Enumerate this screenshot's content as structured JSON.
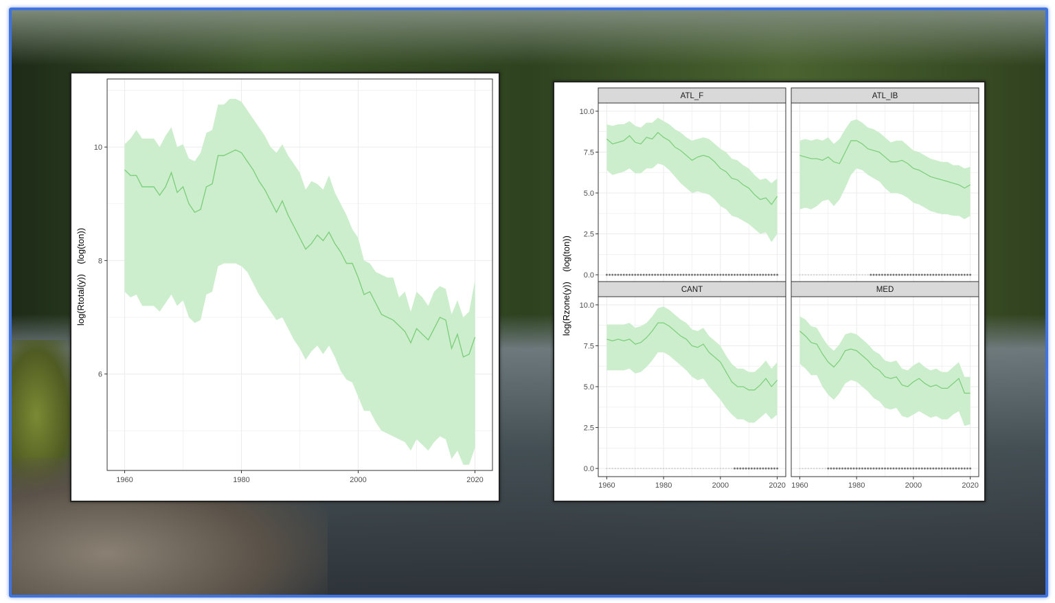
{
  "chart_data": [
    {
      "type": "line",
      "ylabel": "log(Rtotal(y))    (log(ton))",
      "xlabel": "",
      "xlim": [
        1957,
        2023
      ],
      "ylim": [
        4.3,
        11.2
      ],
      "x_ticks": [
        1960,
        1980,
        2000,
        2020
      ],
      "y_ticks": [
        6,
        8,
        10
      ],
      "grid": true,
      "series": [
        {
          "x": [
            1960,
            1961,
            1962,
            1963,
            1964,
            1965,
            1966,
            1967,
            1968,
            1969,
            1970,
            1971,
            1972,
            1973,
            1974,
            1975,
            1976,
            1977,
            1978,
            1979,
            1980,
            1981,
            1982,
            1983,
            1984,
            1985,
            1986,
            1987,
            1988,
            1989,
            1990,
            1991,
            1992,
            1993,
            1994,
            1995,
            1996,
            1997,
            1998,
            1999,
            2000,
            2001,
            2002,
            2003,
            2004,
            2005,
            2006,
            2007,
            2008,
            2009,
            2010,
            2011,
            2012,
            2013,
            2014,
            2015,
            2016,
            2017,
            2018,
            2019,
            2020
          ],
          "values": [
            9.6,
            9.5,
            9.5,
            9.3,
            9.3,
            9.3,
            9.15,
            9.3,
            9.55,
            9.2,
            9.3,
            9.0,
            8.85,
            8.9,
            9.3,
            9.35,
            9.85,
            9.85,
            9.9,
            9.95,
            9.9,
            9.75,
            9.6,
            9.4,
            9.25,
            9.05,
            8.85,
            9.05,
            8.8,
            8.6,
            8.4,
            8.2,
            8.3,
            8.45,
            8.35,
            8.5,
            8.3,
            8.15,
            7.95,
            7.95,
            7.7,
            7.4,
            7.45,
            7.25,
            7.05,
            7.0,
            6.95,
            6.85,
            6.75,
            6.55,
            6.8,
            6.7,
            6.6,
            6.8,
            7.0,
            6.95,
            6.45,
            6.7,
            6.3,
            6.35,
            6.65
          ],
          "lower": [
            7.45,
            7.35,
            7.4,
            7.2,
            7.2,
            7.2,
            7.1,
            7.25,
            7.4,
            7.2,
            7.3,
            7.0,
            6.9,
            6.95,
            7.4,
            7.45,
            7.9,
            7.95,
            7.95,
            7.95,
            7.9,
            7.8,
            7.6,
            7.4,
            7.25,
            7.1,
            6.95,
            7.0,
            6.8,
            6.6,
            6.45,
            6.25,
            6.4,
            6.5,
            6.35,
            6.5,
            6.3,
            6.05,
            5.9,
            5.85,
            5.6,
            5.35,
            5.35,
            5.15,
            5.0,
            4.95,
            4.9,
            4.85,
            4.8,
            4.65,
            4.85,
            4.75,
            4.65,
            4.8,
            4.9,
            4.85,
            4.5,
            4.65,
            4.4,
            4.4,
            4.7
          ],
          "upper": [
            10.05,
            10.15,
            10.3,
            10.15,
            10.15,
            10.15,
            10.0,
            10.2,
            10.35,
            10.0,
            10.05,
            9.8,
            9.75,
            9.9,
            10.25,
            10.3,
            10.75,
            10.75,
            10.85,
            10.85,
            10.8,
            10.65,
            10.5,
            10.35,
            10.2,
            10.0,
            9.9,
            10.05,
            9.85,
            9.7,
            9.55,
            9.25,
            9.4,
            9.35,
            9.25,
            9.5,
            9.2,
            9.0,
            8.8,
            8.55,
            8.4,
            8.0,
            7.95,
            7.8,
            7.75,
            7.7,
            7.7,
            7.35,
            7.45,
            7.1,
            7.45,
            7.35,
            7.2,
            7.45,
            7.55,
            7.5,
            7.05,
            7.3,
            7.0,
            7.1,
            7.65
          ]
        }
      ]
    },
    {
      "type": "line",
      "ylabel": "log(Rzone(y))    (log(ton))",
      "xlabel": "",
      "xlim": [
        1957,
        2023
      ],
      "ylim": [
        -0.5,
        10.5
      ],
      "x_ticks": [
        1960,
        1980,
        2000,
        2020
      ],
      "y_ticks": [
        0.0,
        2.5,
        5.0,
        7.5,
        10.0
      ],
      "y_tick_labels": [
        "0.0",
        "2.5",
        "5.0",
        "7.5",
        "10.0"
      ],
      "grid": true,
      "facets": [
        {
          "name": "ATL_F",
          "x": [
            1960,
            1962,
            1964,
            1966,
            1968,
            1970,
            1972,
            1974,
            1976,
            1978,
            1980,
            1982,
            1984,
            1986,
            1988,
            1990,
            1992,
            1994,
            1996,
            1998,
            2000,
            2002,
            2004,
            2006,
            2008,
            2010,
            2012,
            2014,
            2016,
            2018,
            2020
          ],
          "values": [
            8.3,
            8.0,
            8.1,
            8.2,
            8.5,
            8.1,
            8.0,
            8.4,
            8.3,
            8.7,
            8.4,
            8.2,
            7.8,
            7.6,
            7.3,
            7.0,
            7.2,
            7.3,
            7.2,
            6.9,
            6.5,
            6.3,
            5.9,
            5.8,
            5.5,
            5.3,
            4.9,
            4.6,
            4.7,
            4.3,
            4.8
          ],
          "lower": [
            6.4,
            6.1,
            6.2,
            6.3,
            6.5,
            6.2,
            6.2,
            6.5,
            6.5,
            6.8,
            6.7,
            6.4,
            6.0,
            5.6,
            5.3,
            5.0,
            5.1,
            5.0,
            4.9,
            4.6,
            4.2,
            4.0,
            3.6,
            3.5,
            3.3,
            3.1,
            2.8,
            2.5,
            2.6,
            2.0,
            2.5
          ],
          "upper": [
            9.2,
            9.1,
            9.2,
            9.2,
            9.4,
            9.1,
            9.0,
            9.3,
            9.3,
            9.6,
            9.4,
            9.2,
            8.9,
            8.7,
            8.4,
            8.2,
            8.3,
            8.4,
            8.3,
            8.0,
            7.7,
            7.5,
            7.1,
            7.0,
            6.7,
            6.5,
            6.1,
            5.8,
            5.9,
            5.6,
            5.9
          ],
          "obs_dots_range": [
            1960,
            2020
          ]
        },
        {
          "name": "ATL_IB",
          "x": [
            1960,
            1962,
            1964,
            1966,
            1968,
            1970,
            1972,
            1974,
            1976,
            1978,
            1980,
            1982,
            1984,
            1986,
            1988,
            1990,
            1992,
            1994,
            1996,
            1998,
            2000,
            2002,
            2004,
            2006,
            2008,
            2010,
            2012,
            2014,
            2016,
            2018,
            2020
          ],
          "values": [
            7.3,
            7.2,
            7.1,
            7.1,
            7.0,
            7.2,
            6.9,
            6.8,
            7.5,
            8.2,
            8.2,
            8.0,
            7.7,
            7.6,
            7.5,
            7.2,
            6.9,
            6.9,
            7.0,
            6.8,
            6.5,
            6.4,
            6.2,
            6.0,
            5.9,
            5.8,
            5.7,
            5.6,
            5.5,
            5.3,
            5.5
          ],
          "lower": [
            4.0,
            4.1,
            4.0,
            4.2,
            4.5,
            4.6,
            4.2,
            4.6,
            5.3,
            6.1,
            6.5,
            6.4,
            6.1,
            5.9,
            5.7,
            5.3,
            5.0,
            5.0,
            4.9,
            4.7,
            4.4,
            4.3,
            4.1,
            3.9,
            3.8,
            3.7,
            3.7,
            3.6,
            3.6,
            3.4,
            3.6
          ],
          "upper": [
            8.2,
            8.3,
            8.2,
            8.3,
            8.2,
            8.4,
            8.0,
            8.3,
            8.9,
            9.4,
            9.5,
            9.3,
            9.0,
            8.9,
            8.7,
            8.4,
            8.1,
            8.2,
            8.2,
            7.9,
            7.6,
            7.5,
            7.3,
            7.1,
            7.0,
            6.9,
            6.9,
            6.7,
            6.7,
            6.5,
            6.6
          ],
          "obs_dots_range": [
            1985,
            2020
          ]
        },
        {
          "name": "CANT",
          "x": [
            1960,
            1962,
            1964,
            1966,
            1968,
            1970,
            1972,
            1974,
            1976,
            1978,
            1980,
            1982,
            1984,
            1986,
            1988,
            1990,
            1992,
            1994,
            1996,
            1998,
            2000,
            2002,
            2004,
            2006,
            2008,
            2010,
            2012,
            2014,
            2016,
            2018,
            2020
          ],
          "values": [
            7.9,
            7.8,
            7.9,
            7.8,
            7.9,
            7.6,
            7.7,
            8.0,
            8.4,
            8.9,
            8.9,
            8.7,
            8.4,
            8.1,
            7.9,
            7.5,
            7.4,
            7.6,
            7.1,
            6.8,
            6.5,
            5.9,
            5.3,
            5.0,
            5.0,
            4.8,
            4.8,
            5.1,
            5.5,
            5.0,
            5.4
          ],
          "lower": [
            6.0,
            6.0,
            6.0,
            6.0,
            6.1,
            5.8,
            5.9,
            6.2,
            6.6,
            7.1,
            7.1,
            6.9,
            6.6,
            6.3,
            6.0,
            5.6,
            5.4,
            5.5,
            5.0,
            4.6,
            4.2,
            3.7,
            3.3,
            3.0,
            3.0,
            2.8,
            2.8,
            3.1,
            3.4,
            3.0,
            3.3
          ],
          "upper": [
            8.8,
            8.8,
            8.8,
            8.8,
            8.9,
            8.6,
            8.7,
            8.9,
            9.3,
            9.8,
            9.9,
            9.7,
            9.4,
            9.1,
            8.9,
            8.5,
            8.4,
            8.6,
            8.1,
            7.8,
            7.5,
            6.9,
            6.4,
            6.1,
            6.1,
            5.9,
            5.9,
            6.2,
            6.6,
            6.1,
            6.5
          ],
          "obs_dots_range": [
            2005,
            2020
          ]
        },
        {
          "name": "MED",
          "x": [
            1960,
            1962,
            1964,
            1966,
            1968,
            1970,
            1972,
            1974,
            1976,
            1978,
            1980,
            1982,
            1984,
            1986,
            1988,
            1990,
            1992,
            1994,
            1996,
            1998,
            2000,
            2002,
            2004,
            2006,
            2008,
            2010,
            2012,
            2014,
            2016,
            2018,
            2020
          ],
          "values": [
            8.4,
            8.1,
            7.7,
            7.6,
            7.0,
            6.5,
            6.2,
            6.6,
            7.2,
            7.3,
            7.2,
            6.9,
            6.6,
            6.2,
            6.0,
            5.6,
            5.5,
            5.6,
            5.1,
            5.0,
            5.3,
            5.5,
            5.2,
            5.0,
            5.1,
            4.9,
            4.9,
            5.2,
            5.5,
            4.6,
            4.6
          ],
          "lower": [
            6.4,
            6.1,
            5.7,
            5.7,
            5.0,
            4.5,
            4.2,
            4.6,
            5.2,
            5.4,
            5.3,
            5.0,
            4.7,
            4.3,
            4.1,
            3.7,
            3.6,
            3.7,
            3.2,
            3.1,
            3.3,
            3.5,
            3.3,
            3.1,
            3.2,
            3.0,
            3.0,
            3.3,
            3.5,
            2.6,
            2.7
          ],
          "upper": [
            9.3,
            9.1,
            8.7,
            8.6,
            8.0,
            7.5,
            7.2,
            7.6,
            8.2,
            8.3,
            8.2,
            7.9,
            7.6,
            7.2,
            7.0,
            6.6,
            6.5,
            6.6,
            6.1,
            6.0,
            6.3,
            6.5,
            6.2,
            6.0,
            6.1,
            5.9,
            5.9,
            6.2,
            6.5,
            5.6,
            5.6
          ],
          "obs_dots_range": [
            1970,
            2020
          ]
        }
      ]
    }
  ],
  "colors": {
    "line": "#7dcf7d",
    "ribbon": "#cdeecd",
    "frame_border": "#3f73e0",
    "strip_bg": "#d9d9d9",
    "grid": "#ebebeb",
    "axis_text": "#4d4d4d"
  }
}
